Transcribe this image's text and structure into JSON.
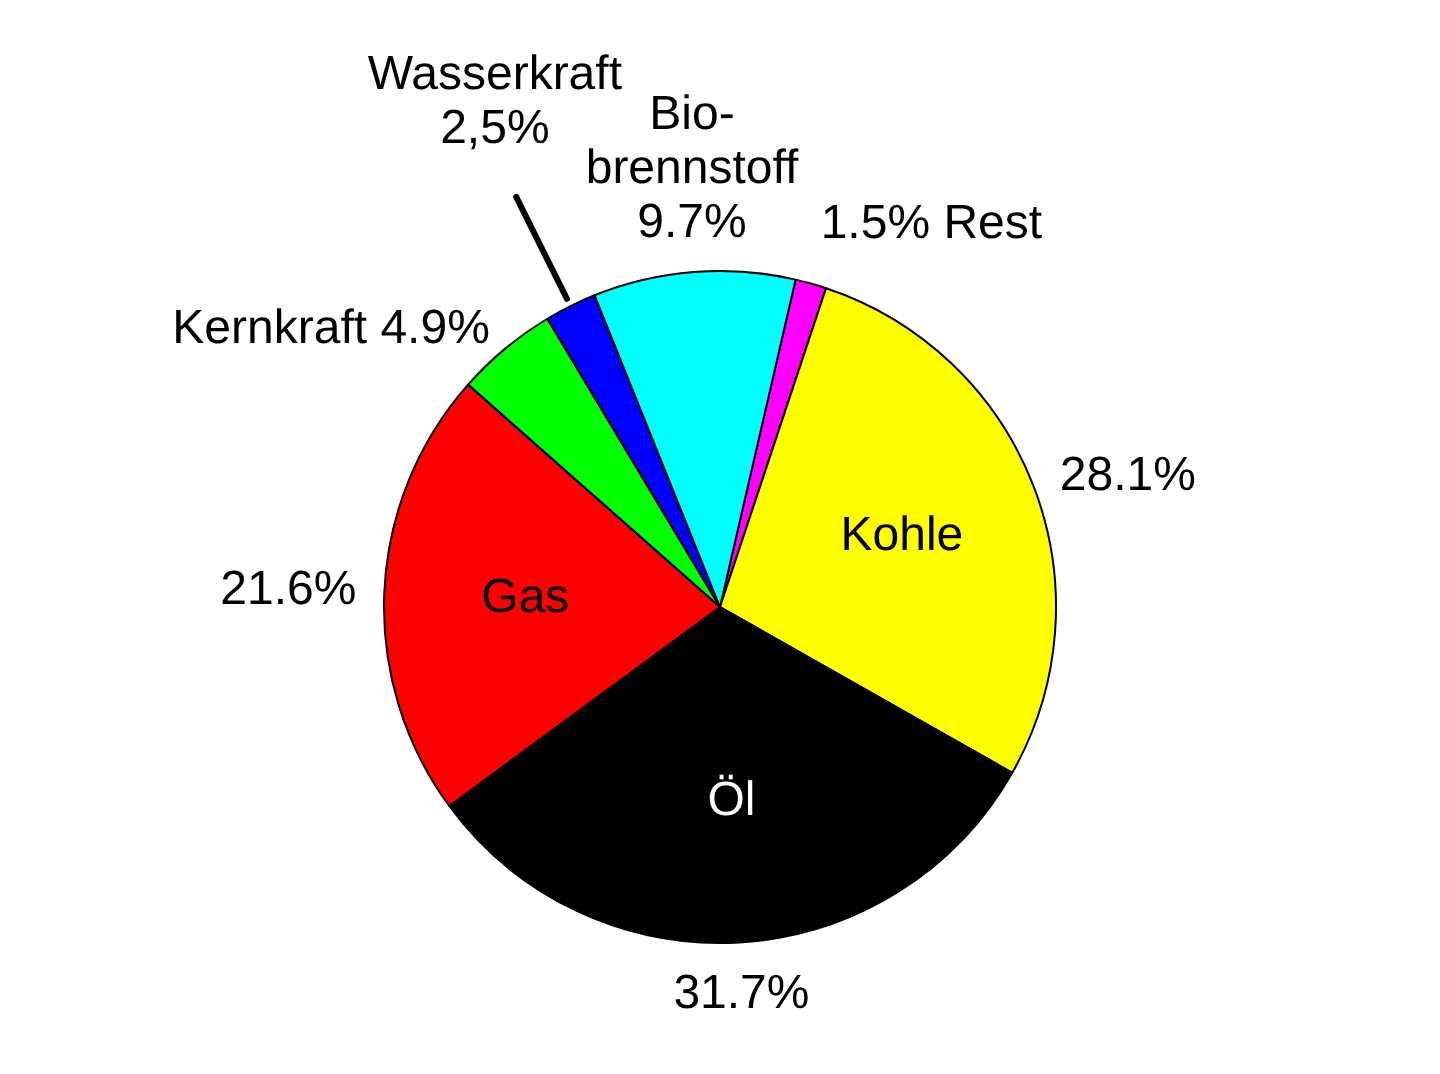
{
  "chart_data": {
    "type": "pie",
    "categories": [
      "Rest",
      "Kohle",
      "Öl",
      "Gas",
      "Kernkraft",
      "Wasserkraft",
      "Bio-brennstoff"
    ],
    "values": [
      1.5,
      28.1,
      31.7,
      21.6,
      4.9,
      2.5,
      9.7
    ],
    "value_labels": [
      "1.5%",
      "28.1%",
      "31.7%",
      "21.6%",
      "4.9%",
      "2,5%",
      "9.7%"
    ],
    "colors": [
      "#ff00ff",
      "#ffff00",
      "#000000",
      "#ff0000",
      "#00ff00",
      "#0000ff",
      "#00ffff"
    ],
    "legend": false
  }
}
